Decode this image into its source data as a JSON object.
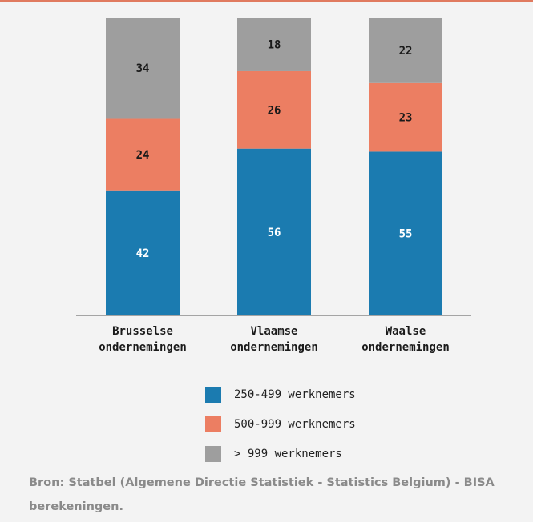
{
  "chart_data": {
    "type": "bar",
    "stacked": true,
    "categories": [
      [
        "Brusselse",
        "ondernemingen"
      ],
      [
        "Vlaamse",
        "ondernemingen"
      ],
      [
        "Waalse",
        "ondernemingen"
      ]
    ],
    "series": [
      {
        "name": "250-499 werknemers",
        "values": [
          42,
          56,
          55
        ],
        "color": "#1b7bb0"
      },
      {
        "name": "500-999 werknemers",
        "values": [
          24,
          26,
          23
        ],
        "color": "#ec7e62"
      },
      {
        "name": "> 999 werknemers",
        "values": [
          34,
          18,
          22
        ],
        "color": "#9e9e9e"
      }
    ],
    "ylim": [
      0,
      100
    ],
    "grid": false,
    "legend_position": "bottom"
  },
  "source": {
    "text": "Bron: Statbel (Algemene Directie Statistiek - Statistics Belgium) - BISA berekeningen."
  }
}
